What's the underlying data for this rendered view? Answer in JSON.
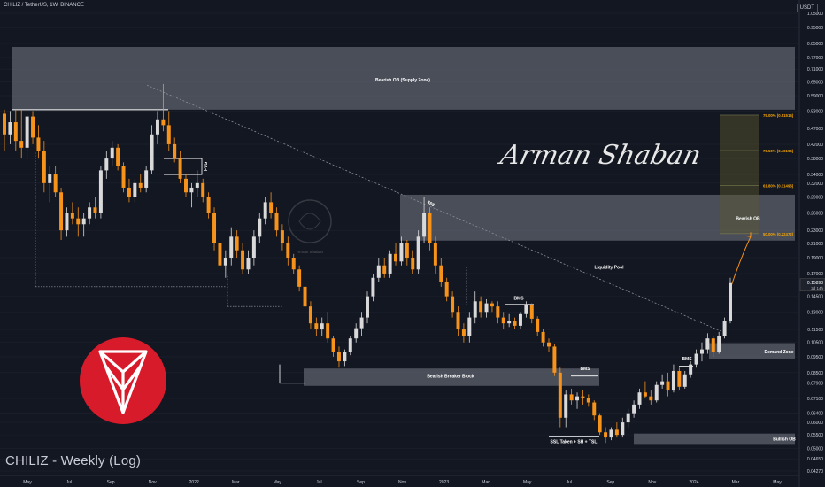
{
  "header": {
    "title": "CHILIZ / TetherUS, 1W, BINANCE",
    "symbol_label": "CHILIZ - Weekly (Log)",
    "currency": "USDT",
    "watermark_name": "Arman Shaban",
    "logo_caption": "Arman Shaban"
  },
  "colors": {
    "background": "#131722",
    "bull_candle": "#d9d9d9",
    "bear_candle": "#f7931a",
    "zone_fill": "#787b86",
    "fib_fill": "#5d5a2e",
    "logo_red": "#d71b2a",
    "text": "#d1d4dc",
    "fib_text": "#f7a600"
  },
  "chart_data": {
    "type": "candlestick",
    "scale": "log",
    "ylim": [
      0.0427,
      1.05
    ],
    "price_ticks": [
      "1.05000",
      "0.95000",
      "0.85000",
      "0.77000",
      "0.71000",
      "0.65000",
      "0.59000",
      "0.53000",
      "0.47000",
      "0.42000",
      "0.38000",
      "0.34000",
      "0.32000",
      "0.29000",
      "0.26000",
      "0.23000",
      "0.21000",
      "0.19000",
      "0.17000",
      "0.14500",
      "0.13000",
      "0.11500",
      "0.10500",
      "0.09500",
      "0.08500",
      "0.07900",
      "0.07100",
      "0.06400",
      "0.06000",
      "0.05500",
      "0.05000",
      "0.04650",
      "0.04270"
    ],
    "time_ticks": [
      "May",
      "Jul",
      "Sep",
      "Nov",
      "2022",
      "Mar",
      "May",
      "Jul",
      "Sep",
      "Nov",
      "2023",
      "Mar",
      "May",
      "Jul",
      "Sep",
      "Nov",
      "2024",
      "Mar",
      "May"
    ],
    "last_price": "0.15898",
    "last_price_sub": "2d 14h",
    "zones": [
      {
        "label": "Bearish OB (Supply Zone)",
        "top": 0.83,
        "bottom": 0.535
      },
      {
        "label": "Bearish OB",
        "top": 0.295,
        "bottom": 0.214
      },
      {
        "label": "Bearish Breaker Block",
        "top": 0.0875,
        "bottom": 0.0775
      },
      {
        "label": "Demand Zone",
        "top": 0.1045,
        "bottom": 0.0935
      },
      {
        "label": "Bullish OB",
        "top": 0.0555,
        "bottom": 0.0513
      }
    ],
    "fib_levels": [
      {
        "label": "79.00% (0.51515)",
        "price": 0.51515
      },
      {
        "label": "70.50% (0.40196)",
        "price": 0.40196
      },
      {
        "label": "61.80% (0.31496)",
        "price": 0.31496
      },
      {
        "label": "50.00% (0.22472)",
        "price": 0.22472
      }
    ],
    "annotations": [
      "FVG",
      "$$$",
      "Liquidity Pool",
      "BMS",
      "BMS",
      "BMS",
      "SSL Taken + SH + TSL"
    ],
    "liquidity_pool_price": 0.178,
    "trendline": {
      "from_price": 0.635,
      "to_price": 0.112
    },
    "candles": [
      [
        0.52,
        0.535,
        0.4,
        0.45
      ],
      [
        0.45,
        0.53,
        0.42,
        0.49
      ],
      [
        0.49,
        0.535,
        0.4,
        0.43
      ],
      [
        0.43,
        0.535,
        0.38,
        0.41
      ],
      [
        0.41,
        0.52,
        0.38,
        0.51
      ],
      [
        0.51,
        0.53,
        0.42,
        0.44
      ],
      [
        0.44,
        0.48,
        0.38,
        0.4
      ],
      [
        0.4,
        0.43,
        0.3,
        0.32
      ],
      [
        0.32,
        0.36,
        0.28,
        0.34
      ],
      [
        0.34,
        0.36,
        0.29,
        0.3
      ],
      [
        0.3,
        0.31,
        0.215,
        0.23
      ],
      [
        0.23,
        0.27,
        0.22,
        0.26
      ],
      [
        0.26,
        0.28,
        0.24,
        0.25
      ],
      [
        0.25,
        0.27,
        0.22,
        0.24
      ],
      [
        0.24,
        0.26,
        0.22,
        0.25
      ],
      [
        0.25,
        0.28,
        0.24,
        0.27
      ],
      [
        0.27,
        0.29,
        0.25,
        0.26
      ],
      [
        0.26,
        0.36,
        0.25,
        0.35
      ],
      [
        0.35,
        0.4,
        0.33,
        0.38
      ],
      [
        0.38,
        0.43,
        0.36,
        0.41
      ],
      [
        0.41,
        0.42,
        0.35,
        0.36
      ],
      [
        0.36,
        0.37,
        0.3,
        0.31
      ],
      [
        0.31,
        0.33,
        0.28,
        0.29
      ],
      [
        0.29,
        0.33,
        0.28,
        0.32
      ],
      [
        0.32,
        0.34,
        0.3,
        0.31
      ],
      [
        0.31,
        0.36,
        0.3,
        0.35
      ],
      [
        0.35,
        0.48,
        0.34,
        0.45
      ],
      [
        0.45,
        0.53,
        0.42,
        0.5
      ],
      [
        0.5,
        0.64,
        0.46,
        0.48
      ],
      [
        0.48,
        0.53,
        0.4,
        0.42
      ],
      [
        0.42,
        0.44,
        0.37,
        0.38
      ],
      [
        0.38,
        0.4,
        0.32,
        0.33
      ],
      [
        0.33,
        0.34,
        0.29,
        0.3
      ],
      [
        0.3,
        0.32,
        0.27,
        0.31
      ],
      [
        0.31,
        0.35,
        0.29,
        0.32
      ],
      [
        0.32,
        0.33,
        0.28,
        0.29
      ],
      [
        0.29,
        0.3,
        0.25,
        0.26
      ],
      [
        0.26,
        0.27,
        0.2,
        0.21
      ],
      [
        0.21,
        0.22,
        0.17,
        0.18
      ],
      [
        0.18,
        0.2,
        0.165,
        0.19
      ],
      [
        0.19,
        0.235,
        0.18,
        0.22
      ],
      [
        0.22,
        0.23,
        0.19,
        0.2
      ],
      [
        0.2,
        0.21,
        0.17,
        0.175
      ],
      [
        0.175,
        0.2,
        0.17,
        0.19
      ],
      [
        0.19,
        0.23,
        0.18,
        0.22
      ],
      [
        0.22,
        0.26,
        0.21,
        0.25
      ],
      [
        0.25,
        0.29,
        0.24,
        0.28
      ],
      [
        0.28,
        0.3,
        0.25,
        0.26
      ],
      [
        0.26,
        0.27,
        0.22,
        0.23
      ],
      [
        0.23,
        0.24,
        0.2,
        0.21
      ],
      [
        0.21,
        0.22,
        0.18,
        0.19
      ],
      [
        0.19,
        0.195,
        0.17,
        0.175
      ],
      [
        0.175,
        0.18,
        0.15,
        0.155
      ],
      [
        0.155,
        0.16,
        0.13,
        0.135
      ],
      [
        0.135,
        0.14,
        0.115,
        0.12
      ],
      [
        0.12,
        0.125,
        0.11,
        0.115
      ],
      [
        0.115,
        0.125,
        0.11,
        0.12
      ],
      [
        0.12,
        0.13,
        0.105,
        0.108
      ],
      [
        0.108,
        0.11,
        0.095,
        0.098
      ],
      [
        0.098,
        0.102,
        0.088,
        0.092
      ],
      [
        0.092,
        0.1,
        0.089,
        0.098
      ],
      [
        0.098,
        0.11,
        0.096,
        0.108
      ],
      [
        0.108,
        0.12,
        0.105,
        0.116
      ],
      [
        0.116,
        0.13,
        0.11,
        0.125
      ],
      [
        0.125,
        0.15,
        0.12,
        0.145
      ],
      [
        0.145,
        0.17,
        0.14,
        0.165
      ],
      [
        0.165,
        0.19,
        0.16,
        0.18
      ],
      [
        0.18,
        0.19,
        0.165,
        0.17
      ],
      [
        0.17,
        0.2,
        0.165,
        0.195
      ],
      [
        0.195,
        0.21,
        0.18,
        0.185
      ],
      [
        0.185,
        0.22,
        0.18,
        0.21
      ],
      [
        0.21,
        0.215,
        0.18,
        0.19
      ],
      [
        0.19,
        0.2,
        0.17,
        0.175
      ],
      [
        0.175,
        0.23,
        0.17,
        0.22
      ],
      [
        0.22,
        0.29,
        0.21,
        0.26
      ],
      [
        0.26,
        0.27,
        0.2,
        0.21
      ],
      [
        0.21,
        0.22,
        0.17,
        0.18
      ],
      [
        0.18,
        0.19,
        0.155,
        0.16
      ],
      [
        0.16,
        0.165,
        0.14,
        0.145
      ],
      [
        0.145,
        0.15,
        0.125,
        0.13
      ],
      [
        0.13,
        0.135,
        0.11,
        0.115
      ],
      [
        0.115,
        0.12,
        0.105,
        0.11
      ],
      [
        0.11,
        0.13,
        0.105,
        0.125
      ],
      [
        0.125,
        0.15,
        0.12,
        0.14
      ],
      [
        0.14,
        0.145,
        0.125,
        0.13
      ],
      [
        0.13,
        0.142,
        0.125,
        0.138
      ],
      [
        0.138,
        0.14,
        0.13,
        0.135
      ],
      [
        0.135,
        0.14,
        0.12,
        0.125
      ],
      [
        0.125,
        0.13,
        0.115,
        0.12
      ],
      [
        0.12,
        0.128,
        0.117,
        0.122
      ],
      [
        0.122,
        0.125,
        0.115,
        0.118
      ],
      [
        0.118,
        0.13,
        0.115,
        0.128
      ],
      [
        0.128,
        0.14,
        0.125,
        0.136
      ],
      [
        0.136,
        0.138,
        0.12,
        0.124
      ],
      [
        0.124,
        0.126,
        0.11,
        0.113
      ],
      [
        0.113,
        0.115,
        0.102,
        0.105
      ],
      [
        0.105,
        0.108,
        0.098,
        0.102
      ],
      [
        0.102,
        0.104,
        0.083,
        0.085
      ],
      [
        0.085,
        0.088,
        0.058,
        0.062
      ],
      [
        0.062,
        0.075,
        0.058,
        0.073
      ],
      [
        0.073,
        0.076,
        0.068,
        0.07
      ],
      [
        0.07,
        0.074,
        0.066,
        0.072
      ],
      [
        0.072,
        0.075,
        0.068,
        0.071
      ],
      [
        0.071,
        0.073,
        0.067,
        0.069
      ],
      [
        0.069,
        0.07,
        0.061,
        0.063
      ],
      [
        0.063,
        0.064,
        0.055,
        0.056
      ],
      [
        0.056,
        0.058,
        0.052,
        0.054
      ],
      [
        0.054,
        0.058,
        0.053,
        0.057
      ],
      [
        0.057,
        0.06,
        0.054,
        0.055
      ],
      [
        0.055,
        0.062,
        0.054,
        0.06
      ],
      [
        0.06,
        0.066,
        0.058,
        0.064
      ],
      [
        0.064,
        0.07,
        0.062,
        0.068
      ],
      [
        0.068,
        0.076,
        0.066,
        0.074
      ],
      [
        0.074,
        0.08,
        0.071,
        0.072
      ],
      [
        0.072,
        0.075,
        0.068,
        0.07
      ],
      [
        0.07,
        0.08,
        0.069,
        0.078
      ],
      [
        0.078,
        0.084,
        0.076,
        0.08
      ],
      [
        0.08,
        0.085,
        0.072,
        0.075
      ],
      [
        0.075,
        0.09,
        0.074,
        0.086
      ],
      [
        0.086,
        0.088,
        0.075,
        0.077
      ],
      [
        0.077,
        0.086,
        0.076,
        0.084
      ],
      [
        0.084,
        0.092,
        0.082,
        0.09
      ],
      [
        0.09,
        0.1,
        0.088,
        0.097
      ],
      [
        0.097,
        0.105,
        0.092,
        0.1
      ],
      [
        0.1,
        0.112,
        0.097,
        0.108
      ],
      [
        0.108,
        0.11,
        0.095,
        0.098
      ],
      [
        0.098,
        0.113,
        0.097,
        0.11
      ],
      [
        0.11,
        0.125,
        0.108,
        0.122
      ],
      [
        0.122,
        0.165,
        0.12,
        0.159
      ]
    ]
  }
}
